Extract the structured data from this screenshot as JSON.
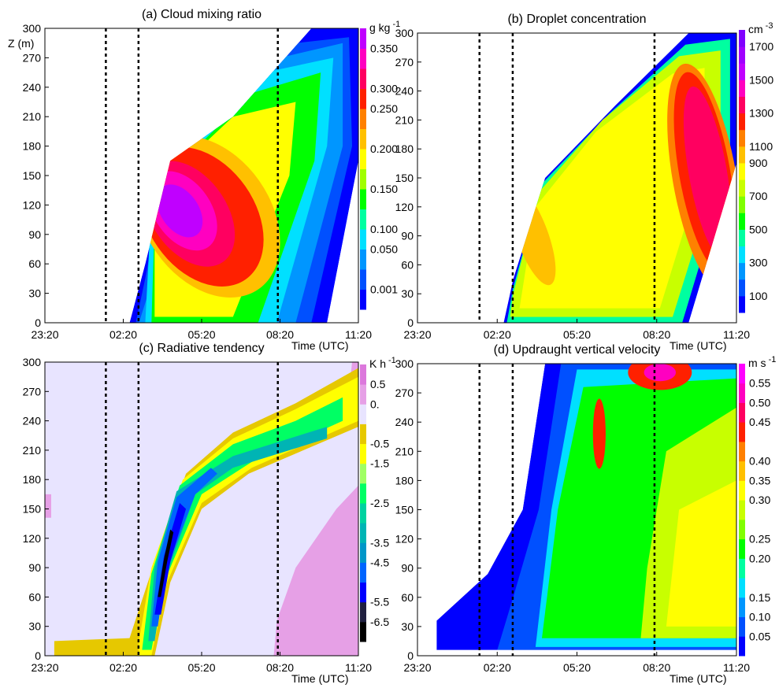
{
  "figure": {
    "x_tick_labels": [
      "23:20",
      "02:20",
      "05:20",
      "08:20",
      "11:20"
    ],
    "x_axis_label": "Time (UTC)",
    "y_axis_label": "Z (m)",
    "y_tick_labels": [
      "0",
      "30",
      "60",
      "90",
      "120",
      "150",
      "180",
      "210",
      "240",
      "270",
      "300"
    ]
  },
  "chart_data": [
    {
      "id": "a",
      "type": "heatmap",
      "title": "(a) Cloud mixing ratio",
      "xlabel": "Time (UTC)",
      "ylabel": "Z (m)",
      "ylim": [
        0,
        300
      ],
      "xlim": [
        "23:20",
        "11:20"
      ],
      "dashed_lines": [
        "01:40",
        "02:55",
        "08:15"
      ],
      "colorbar": {
        "unit": "g kg-1",
        "unit_base": "g kg",
        "unit_exp": "-1",
        "labels": [
          "0.001",
          "0.050",
          "0.100",
          "0.150",
          "0.200",
          "0.250",
          "0.300",
          "0.350"
        ],
        "colors": [
          "#0000ff",
          "#0050ff",
          "#0096ff",
          "#00e0ff",
          "#00ffa0",
          "#00ff00",
          "#a0ff00",
          "#ffff00",
          "#ffc000",
          "#ff8000",
          "#ff2000",
          "#ff0060",
          "#ff00c0",
          "#c000ff"
        ]
      }
    },
    {
      "id": "b",
      "type": "heatmap",
      "title": "(b) Droplet concentration",
      "xlabel": "Time (UTC)",
      "ylim": [
        0,
        300
      ],
      "xlim": [
        "23:20",
        "11:20"
      ],
      "dashed_lines": [
        "01:40",
        "02:55",
        "08:15"
      ],
      "colorbar": {
        "unit": "cm-3",
        "unit_base": "cm",
        "unit_exp": "-3",
        "labels": [
          "100",
          "300",
          "500",
          "700",
          "900",
          "1100",
          "1300",
          "1500",
          "1700"
        ],
        "colors": [
          "#0000ff",
          "#0050ff",
          "#0096ff",
          "#00e0ff",
          "#00ffa0",
          "#00ff00",
          "#80ff00",
          "#c8ff00",
          "#ffff00",
          "#ffc000",
          "#ff8000",
          "#ff2000",
          "#ff0060",
          "#ff00c0",
          "#c000ff",
          "#a000ff",
          "#8000ff"
        ]
      }
    },
    {
      "id": "c",
      "type": "heatmap",
      "title": "(c) Radiative tendency",
      "xlabel": "Time (UTC)",
      "ylim": [
        0,
        300
      ],
      "xlim": [
        "23:20",
        "11:20"
      ],
      "dashed_lines": [
        "01:40",
        "02:55",
        "08:15"
      ],
      "colorbar": {
        "unit": "K h-1",
        "unit_base": "K h",
        "unit_exp": "-1",
        "labels": [
          "-6.5",
          "-5.5",
          "-4.5",
          "-3.5",
          "-2.5",
          "-1.5",
          "-0.5",
          "0.",
          "0.5"
        ],
        "colors": [
          "#000000",
          "#202040",
          "#0000ff",
          "#0064ff",
          "#0096c8",
          "#00b4b4",
          "#00d2a0",
          "#00ff64",
          "#a0ff64",
          "#ffff00",
          "#e6c800",
          "#e8e4ff",
          "#e6a0e6",
          "#dc78dc"
        ]
      }
    },
    {
      "id": "d",
      "type": "heatmap",
      "title": "(d) Updraught vertical velocity",
      "xlabel": "Time (UTC)",
      "ylim": [
        0,
        300
      ],
      "xlim": [
        "23:20",
        "11:20"
      ],
      "dashed_lines": [
        "01:40",
        "02:55",
        "08:15"
      ],
      "colorbar": {
        "unit": "m s-1",
        "unit_base": "m s",
        "unit_exp": "-1",
        "labels": [
          "0.05",
          "0.10",
          "0.15",
          "0.20",
          "0.25",
          "0.30",
          "0.35",
          "0.40",
          "0.45",
          "0.50",
          "0.55"
        ],
        "colors": [
          "#0000ff",
          "#0050ff",
          "#0096ff",
          "#00e0ff",
          "#00ffa0",
          "#00ff00",
          "#80ff00",
          "#c8ff00",
          "#ffff00",
          "#ffc000",
          "#ff8000",
          "#ff2000",
          "#ff0060",
          "#ff00c0",
          "#ff00ff"
        ]
      }
    }
  ]
}
